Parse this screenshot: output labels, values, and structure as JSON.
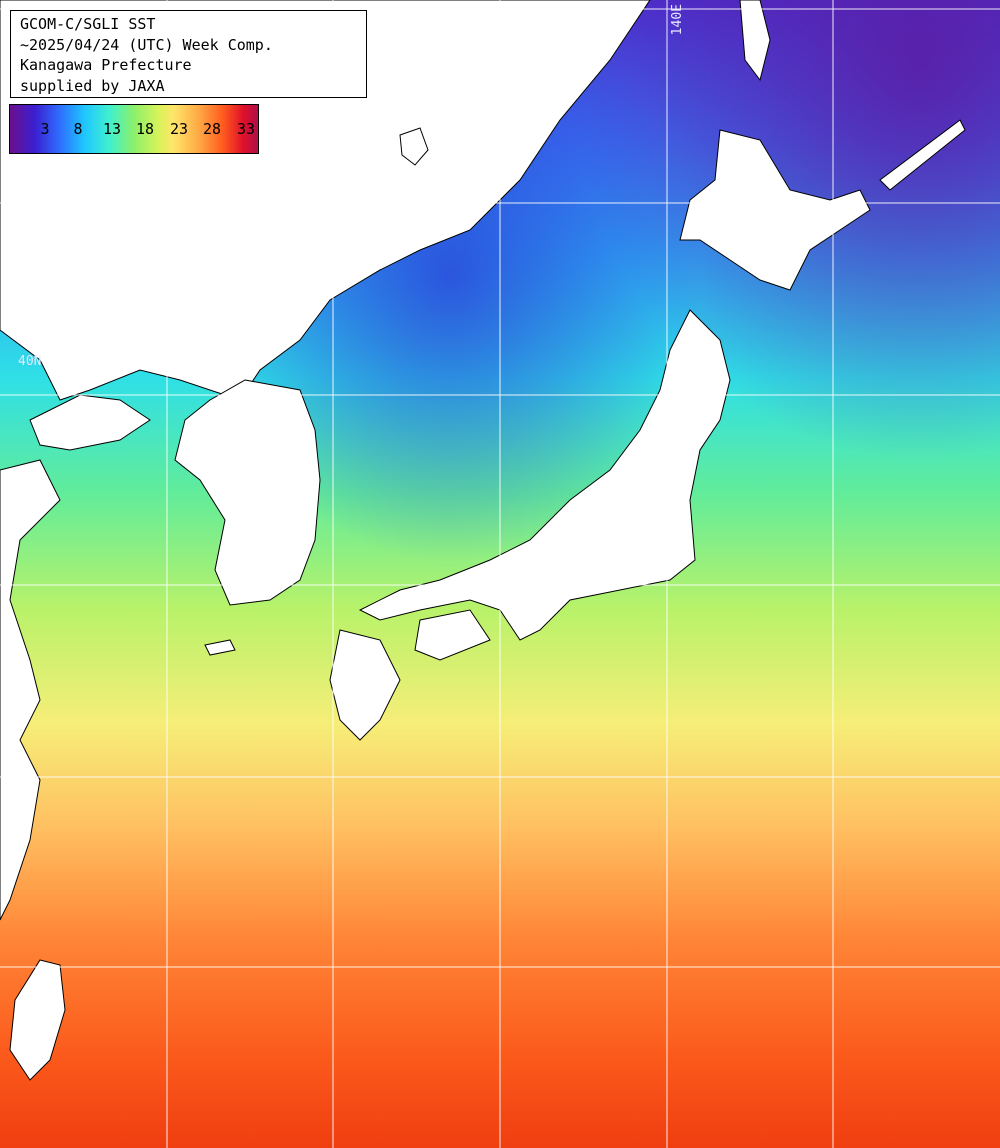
{
  "title": {
    "line1": "GCOM-C/SGLI SST",
    "line2": "~2025/04/24 (UTC) Week Comp.",
    "line3": "Kanagawa Prefecture",
    "line4": "supplied by JAXA"
  },
  "colorbar": {
    "ticks": [
      "3",
      "8",
      "13",
      "18",
      "23",
      "28",
      "33"
    ]
  },
  "grid_labels": {
    "lon": "140E",
    "lat": "40N"
  }
}
